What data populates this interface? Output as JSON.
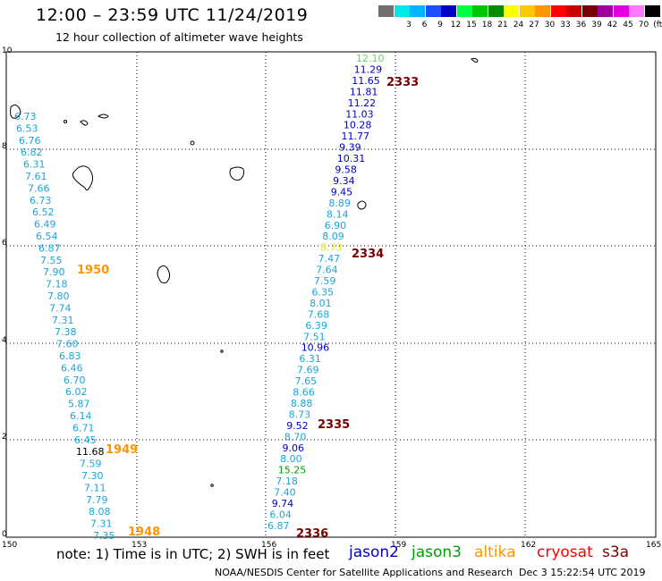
{
  "title": "12:00  –  23:59 UTC 11/24/2019",
  "subtitle": "12 hour collection of altimeter wave heights",
  "scale": {
    "unit": "(ft)",
    "items": [
      {
        "color": "#707070",
        "label": ""
      },
      {
        "color": "#00e8e8",
        "label": "3"
      },
      {
        "color": "#00b4ff",
        "label": "6"
      },
      {
        "color": "#1c50ff",
        "label": "9"
      },
      {
        "color": "#0000c8",
        "label": "12"
      },
      {
        "color": "#00ff40",
        "label": "15"
      },
      {
        "color": "#00c800",
        "label": "18"
      },
      {
        "color": "#008c00",
        "label": "21"
      },
      {
        "color": "#ffff00",
        "label": "24"
      },
      {
        "color": "#ffc800",
        "label": "27"
      },
      {
        "color": "#ff9600",
        "label": "30"
      },
      {
        "color": "#ff0000",
        "label": "33"
      },
      {
        "color": "#c80000",
        "label": "36"
      },
      {
        "color": "#780000",
        "label": "39"
      },
      {
        "color": "#a000a0",
        "label": "42"
      },
      {
        "color": "#e000e0",
        "label": "45"
      },
      {
        "color": "#ff78ff",
        "label": "70"
      },
      {
        "color": "#000000",
        "label": "(ft)"
      }
    ]
  },
  "axes": {
    "x_ticks": [
      "150",
      "153",
      "156",
      "159",
      "162",
      "165"
    ],
    "y_ticks": [
      "0",
      "2",
      "4",
      "6",
      "8",
      "10"
    ]
  },
  "tracks": [
    {
      "id": "left",
      "color": "#1aa6d9",
      "values": [
        "6.73",
        "6.53",
        "6.76",
        "6.82",
        "6.31",
        "7.61",
        "7.66",
        "6.73",
        "6.52",
        "6.49",
        "6.54",
        "6.87",
        "7.55",
        "7.90",
        "7.18",
        "7.80",
        "7.74",
        "7.31",
        "7.38",
        "7.60",
        "6.83",
        "6.46",
        "6.70",
        "6.02",
        "5.87",
        "6.14",
        "6.71",
        "6.45",
        "11.68",
        "7.59",
        "7.30",
        "7.11",
        "7.79",
        "8.08",
        "7.31",
        "7.35"
      ]
    },
    {
      "id": "right",
      "values": [
        "12.10",
        "11.29",
        "11.65",
        "11.81",
        "11.22",
        "11.03",
        "10.28",
        "11.77",
        "9.39",
        "10.31",
        "9.58",
        "9.34",
        "9.45",
        "8.89",
        "8.14",
        "6.90",
        "8.09",
        "8.73",
        "7.47",
        "7.64",
        "7.59",
        "6.35",
        "8.01",
        "7.68",
        "6.39",
        "7.51",
        "10.96",
        "6.31",
        "7.69",
        "7.65",
        "8.66",
        "8.88",
        "8.73",
        "9.52",
        "8.70",
        "9.06",
        "8.00",
        "15.25",
        "7.18",
        "7.40",
        "9.74",
        "6.04",
        "6.87"
      ]
    }
  ],
  "time_labels_left": [
    {
      "text": "1950",
      "color": "#ff9600"
    },
    {
      "text": "1949",
      "color": "#ff9600"
    },
    {
      "text": "1948",
      "color": "#ff9600"
    }
  ],
  "time_labels_right": [
    {
      "text": "2333",
      "color": "#780000"
    },
    {
      "text": "2334",
      "color": "#780000"
    },
    {
      "text": "2335",
      "color": "#780000"
    },
    {
      "text": "2336",
      "color": "#780000"
    }
  ],
  "note": "note:  1) Time is in UTC;  2) SWH is in feet",
  "satellites": [
    {
      "name": "jason2",
      "color": "#0000c8"
    },
    {
      "name": "jason3",
      "color": "#00a000"
    },
    {
      "name": "altika",
      "color": "#ff9600"
    },
    {
      "name": "cryosat",
      "color": "#ff0000"
    },
    {
      "name": "s3a",
      "color": "#780000"
    }
  ],
  "credit": "NOAA/NESDIS Center for Satellite Applications and Research",
  "datestamp": "Dec  3 15:22:54 UTC 2019"
}
